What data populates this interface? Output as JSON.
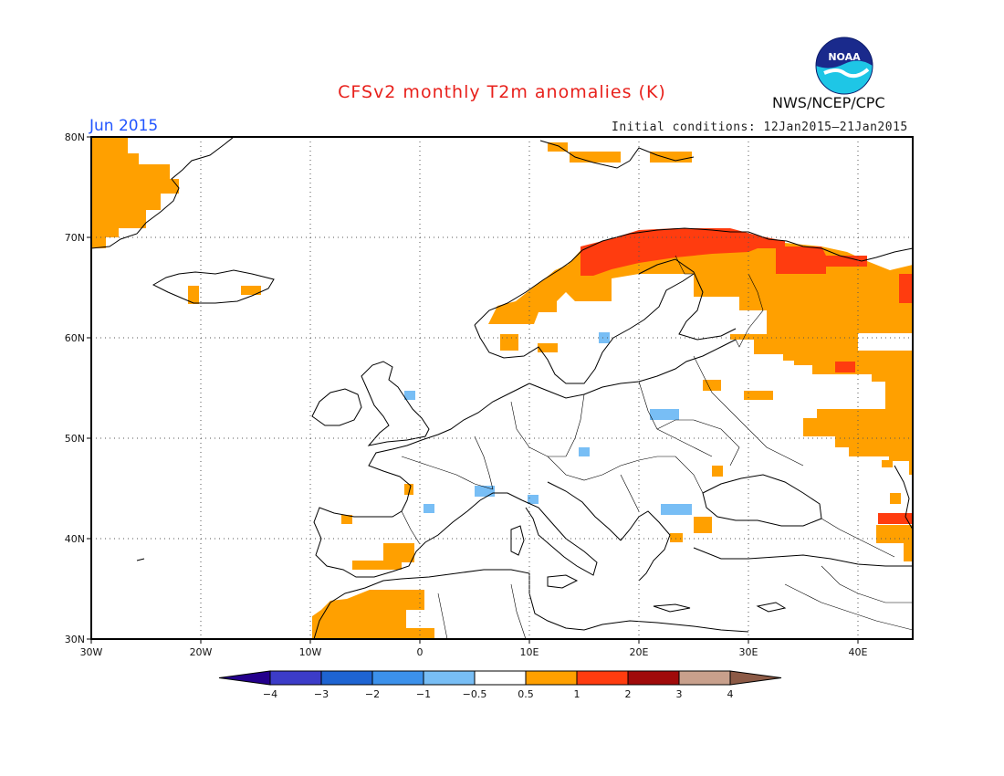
{
  "header": {
    "title": "CFSv2 monthly T2m anomalies (K)",
    "period": "Jun 2015",
    "initial_conditions": "Initial conditions: 12Jan2015–21Jan2015",
    "organization": "NWS/NCEP/CPC",
    "logo_text": "NOAA"
  },
  "map": {
    "lon_range": [
      -30,
      45
    ],
    "lat_range": [
      30,
      80
    ],
    "lat_labels": [
      "30N",
      "40N",
      "50N",
      "60N",
      "70N",
      "80N"
    ],
    "lon_labels": [
      "30W",
      "20W",
      "10W",
      "0",
      "10E",
      "20E",
      "30E",
      "40E"
    ],
    "anomaly_regions": [
      {
        "name": "greenland-east",
        "category": "0.5 to 1"
      },
      {
        "name": "scandinavia-north",
        "category": "1 to 2"
      },
      {
        "name": "northwest-russia",
        "category": "0.5 to 1"
      },
      {
        "name": "kola-peninsula",
        "category": "1 to 2"
      },
      {
        "name": "iberia-morocco",
        "category": "0.5 to 1"
      },
      {
        "name": "turkey-caucasus",
        "category": "1 to 2"
      },
      {
        "name": "british-isles-spot",
        "category": "-1 to -0.5"
      },
      {
        "name": "belarus-spot",
        "category": "-1 to -0.5"
      },
      {
        "name": "balkans-spot",
        "category": "-1 to -0.5"
      }
    ]
  },
  "colorbar": {
    "labels": [
      "-4",
      "-3",
      "-2",
      "-1",
      "-0.5",
      "0.5",
      "1",
      "2",
      "3",
      "4"
    ],
    "colors": [
      "#24008c",
      "#3c3cc8",
      "#1e64d2",
      "#3c91eb",
      "#78bef5",
      "#ffffff",
      "#ffa000",
      "#ff3c0f",
      "#a00a0a",
      "#c8a08c",
      "#8c5a46"
    ]
  }
}
